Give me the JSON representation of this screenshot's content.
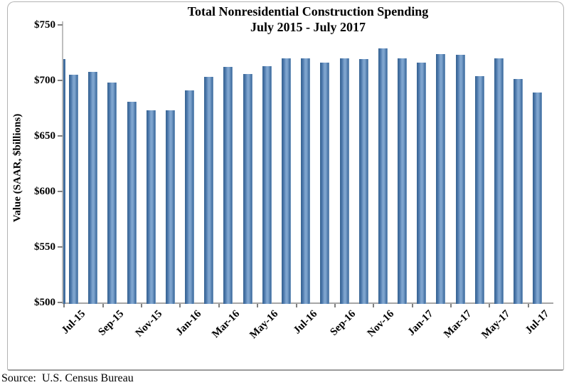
{
  "chart_data": {
    "type": "bar",
    "title": "Total Nonresidential Construction Spending",
    "subtitle": "July 2015 - July 2017",
    "ylabel": "Value (SAAR, $billions)",
    "ylim": [
      500,
      750
    ],
    "y_tick_step": 50,
    "y_tick_labels": [
      "$750",
      "$700",
      "$650",
      "$600",
      "$550",
      "$500"
    ],
    "categories": [
      "Jul-15",
      "Aug-15",
      "Sep-15",
      "Oct-15",
      "Nov-15",
      "Dec-15",
      "Jan-16",
      "Feb-16",
      "Mar-16",
      "Apr-16",
      "May-16",
      "Jun-16",
      "Jul-16",
      "Aug-16",
      "Sep-16",
      "Oct-16",
      "Nov-16",
      "Dec-16",
      "Jan-17",
      "Feb-17",
      "Mar-17",
      "Apr-17",
      "May-17",
      "Jun-17",
      "Jul-17"
    ],
    "values": [
      705,
      708,
      698,
      681,
      673,
      673,
      691,
      703,
      712,
      706,
      713,
      720,
      720,
      716,
      720,
      719,
      729,
      720,
      716,
      724,
      723,
      704,
      720,
      701,
      689
    ],
    "x_tick_labels": [
      "Jul-15",
      "Sep-15",
      "Nov-15",
      "Jan-16",
      "Mar-16",
      "May-16",
      "Jul-16",
      "Sep-16",
      "Nov-16",
      "Jan-17",
      "Mar-17",
      "May-17",
      "Jul-17"
    ],
    "clipped_left_edge_bar_value": 719,
    "bar_color": "#4f81bd",
    "bar_edge_color": "#35618f",
    "grid": "off",
    "legend": "none"
  },
  "source": {
    "label": "Source:  U.S. Census Bureau"
  }
}
